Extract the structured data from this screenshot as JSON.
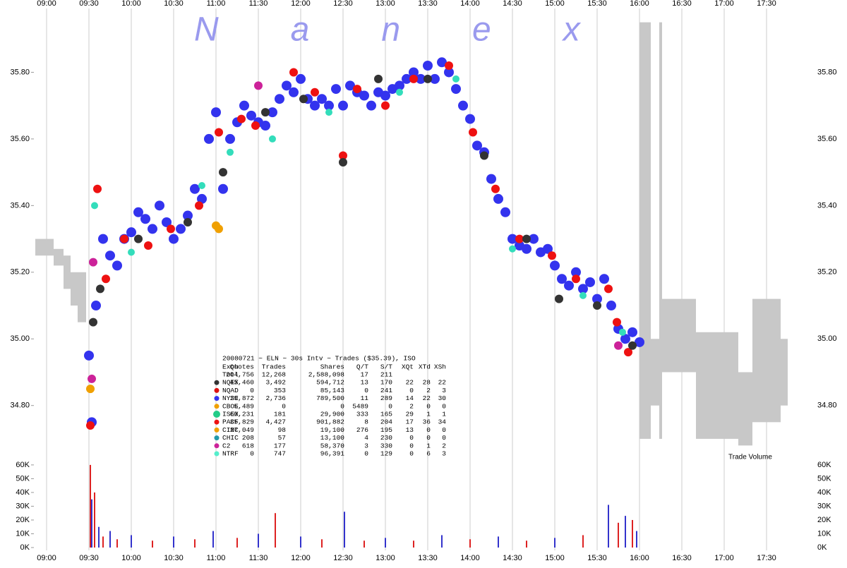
{
  "chart_data": [
    {
      "type": "scatter",
      "watermark": "Nanex",
      "xlim": [
        "08:51",
        "18:03"
      ],
      "xticks": [
        "09:00",
        "09:30",
        "10:00",
        "10:30",
        "11:00",
        "11:30",
        "12:00",
        "12:30",
        "13:00",
        "13:30",
        "14:00",
        "14:30",
        "15:00",
        "15:30",
        "16:00",
        "16:30",
        "17:00",
        "17:30"
      ],
      "ylim": [
        34.63,
        36.0
      ],
      "yticks": [
        {
          "value": 34.8,
          "label": "34.80"
        },
        {
          "value": 35.0,
          "label": "35.00"
        },
        {
          "value": 35.2,
          "label": "35.20"
        },
        {
          "value": 35.4,
          "label": "35.40"
        },
        {
          "value": 35.6,
          "label": "35.60"
        },
        {
          "value": 35.8,
          "label": "35.80"
        }
      ],
      "grid": "x",
      "quote_ranges": {
        "color": "#c8c8c8",
        "x": [
          "08:52",
          "09:05",
          "09:12",
          "09:17",
          "09:22",
          "16:00",
          "16:08",
          "16:14",
          "16:16",
          "16:40",
          "17:10",
          "17:20",
          "17:40"
        ],
        "x_end": [
          "09:05",
          "09:12",
          "09:17",
          "09:22",
          "09:28",
          "16:08",
          "16:14",
          "16:16",
          "16:40",
          "17:10",
          "17:20",
          "17:40",
          "17:45"
        ],
        "low": [
          35.25,
          35.22,
          35.15,
          35.1,
          35.05,
          34.7,
          34.8,
          34.7,
          34.9,
          34.7,
          34.68,
          34.75,
          34.8
        ],
        "high": [
          35.3,
          35.27,
          35.25,
          35.2,
          35.2,
          35.95,
          35.0,
          35.95,
          35.12,
          35.02,
          34.9,
          35.12,
          35.0
        ]
      },
      "series": [
        {
          "color": "#3333ee",
          "marker_size": 7,
          "x": [
            "09:30",
            "09:32",
            "09:35",
            "09:40",
            "09:45",
            "09:50",
            "09:55",
            "10:00",
            "10:05",
            "10:10",
            "10:15",
            "10:20",
            "10:25",
            "10:30",
            "10:35",
            "10:40",
            "10:45",
            "10:50",
            "10:55",
            "11:00",
            "11:05",
            "11:10",
            "11:15",
            "11:20",
            "11:25",
            "11:30",
            "11:35",
            "11:40",
            "11:45",
            "11:50",
            "11:55",
            "12:00",
            "12:05",
            "12:10",
            "12:15",
            "12:20",
            "12:25",
            "12:30",
            "12:35",
            "12:40",
            "12:45",
            "12:50",
            "12:55",
            "13:00",
            "13:05",
            "13:10",
            "13:15",
            "13:20",
            "13:25",
            "13:30",
            "13:35",
            "13:40",
            "13:45",
            "13:50",
            "13:55",
            "14:00",
            "14:05",
            "14:10",
            "14:15",
            "14:20",
            "14:25",
            "14:30",
            "14:35",
            "14:40",
            "14:45",
            "14:50",
            "14:55",
            "15:00",
            "15:05",
            "15:10",
            "15:15",
            "15:20",
            "15:25",
            "15:30",
            "15:35",
            "15:40",
            "15:45",
            "15:50",
            "15:55",
            "16:00"
          ],
          "values": [
            34.95,
            34.75,
            35.1,
            35.3,
            35.25,
            35.22,
            35.3,
            35.32,
            35.38,
            35.36,
            35.33,
            35.4,
            35.35,
            35.3,
            35.33,
            35.37,
            35.45,
            35.42,
            35.6,
            35.68,
            35.45,
            35.6,
            35.65,
            35.7,
            35.67,
            35.65,
            35.64,
            35.68,
            35.72,
            35.76,
            35.74,
            35.78,
            35.72,
            35.7,
            35.72,
            35.7,
            35.75,
            35.7,
            35.76,
            35.74,
            35.73,
            35.7,
            35.74,
            35.73,
            35.75,
            35.76,
            35.78,
            35.8,
            35.78,
            35.82,
            35.78,
            35.83,
            35.8,
            35.75,
            35.7,
            35.66,
            35.58,
            35.56,
            35.48,
            35.42,
            35.38,
            35.3,
            35.28,
            35.27,
            35.3,
            35.26,
            35.27,
            35.22,
            35.18,
            35.16,
            35.2,
            35.15,
            35.17,
            35.12,
            35.18,
            35.1,
            35.03,
            35.0,
            35.02,
            34.99
          ]
        },
        {
          "color": "#ee1111",
          "marker_size": 6,
          "x": [
            "09:31",
            "09:36",
            "09:42",
            "09:55",
            "10:12",
            "10:28",
            "10:48",
            "11:02",
            "11:18",
            "11:28",
            "11:55",
            "12:10",
            "12:30",
            "12:40",
            "13:00",
            "13:20",
            "13:45",
            "14:02",
            "14:18",
            "14:35",
            "14:58",
            "15:15",
            "15:38",
            "15:44",
            "15:52"
          ],
          "values": [
            34.74,
            35.45,
            35.18,
            35.3,
            35.28,
            35.33,
            35.4,
            35.62,
            35.66,
            35.64,
            35.8,
            35.74,
            35.55,
            35.75,
            35.7,
            35.78,
            35.82,
            35.62,
            35.45,
            35.3,
            35.25,
            35.18,
            35.15,
            35.05,
            34.96
          ]
        },
        {
          "color": "#333333",
          "marker_size": 6,
          "x": [
            "09:33",
            "09:38",
            "10:05",
            "10:40",
            "11:05",
            "11:35",
            "12:02",
            "12:30",
            "12:55",
            "13:30",
            "14:10",
            "14:40",
            "15:03",
            "15:30",
            "15:55"
          ],
          "values": [
            35.05,
            35.15,
            35.3,
            35.35,
            35.5,
            35.68,
            35.72,
            35.53,
            35.78,
            35.78,
            35.55,
            35.3,
            35.12,
            35.1,
            34.98
          ]
        },
        {
          "color": "#33ddbb",
          "marker_size": 5,
          "x": [
            "09:34",
            "10:00",
            "10:50",
            "11:10",
            "11:40",
            "12:20",
            "13:10",
            "13:50",
            "14:30",
            "15:20",
            "15:48"
          ],
          "values": [
            35.4,
            35.26,
            35.46,
            35.56,
            35.6,
            35.68,
            35.74,
            35.78,
            35.27,
            35.13,
            35.02
          ]
        },
        {
          "color": "#f0a000",
          "marker_size": 6,
          "x": [
            "09:31",
            "11:00",
            "11:02"
          ],
          "values": [
            34.85,
            35.34,
            35.33
          ]
        },
        {
          "color": "#cc2299",
          "marker_size": 6,
          "x": [
            "09:32",
            "09:33",
            "11:30",
            "15:45"
          ],
          "values": [
            34.88,
            35.23,
            35.76,
            34.98
          ]
        }
      ],
      "stats_table": {
        "title": "20080721 ~ ELN ~ 30s Intv ~ Trades ($35.39), ISO",
        "columns": [
          "Exch",
          "Quotes",
          "Trades",
          "Shares",
          "Q/T",
          "S/T",
          "XQt",
          "XTd",
          "XSh"
        ],
        "rows": [
          [
            "Totl",
            "204,756",
            "12,268",
            "2,588,098",
            "17",
            "211"
          ],
          [
            "NQEX",
            "45,460",
            "3,492",
            "594,712",
            "13",
            "170",
            "22",
            "28",
            "22"
          ],
          [
            "NQAD",
            "0",
            "353",
            "85,143",
            "0",
            "241",
            "0",
            "2",
            "3"
          ],
          [
            "NYSE",
            "29,872",
            "2,736",
            "789,500",
            "11",
            "289",
            "14",
            "22",
            "30"
          ],
          [
            "CBOE",
            "5,489",
            "0",
            "0",
            "5489",
            "0",
            "2",
            "0",
            "0"
          ],
          [
            "ISEX",
            "60,231",
            "181",
            "29,900",
            "333",
            "165",
            "29",
            "1",
            "1"
          ],
          [
            "PACF",
            "35,829",
            "4,427",
            "901,882",
            "8",
            "204",
            "17",
            "36",
            "34"
          ],
          [
            "CINC",
            "27,049",
            "98",
            "19,100",
            "276",
            "195",
            "13",
            "0",
            "0"
          ],
          [
            "CHIC",
            "208",
            "57",
            "13,100",
            "4",
            "230",
            "0",
            "0",
            "0"
          ],
          [
            "C2",
            "618",
            "177",
            "58,370",
            "3",
            "330",
            "0",
            "1",
            "2"
          ],
          [
            "NTRF",
            "0",
            "747",
            "96,391",
            "0",
            "129",
            "0",
            "6",
            "3"
          ]
        ],
        "marker_colors": [
          null,
          "#333333",
          "#dd1111",
          "#3333ee",
          "#f0a000",
          "#22cc88",
          "#ee1111",
          "#f0a000",
          "#2299aa",
          "#cc2299",
          "#55eecc"
        ]
      }
    },
    {
      "type": "bar",
      "annotation": "Trade Volume",
      "ylim": [
        0,
        62000
      ],
      "yticks": [
        {
          "value": 0,
          "label": "0K"
        },
        {
          "value": 10000,
          "label": "10K"
        },
        {
          "value": 20000,
          "label": "20K"
        },
        {
          "value": 30000,
          "label": "30K"
        },
        {
          "value": 40000,
          "label": "40K"
        },
        {
          "value": 50000,
          "label": "50K"
        },
        {
          "value": 60000,
          "label": "60K"
        }
      ],
      "color": "#dd2222",
      "x": [
        "09:31",
        "09:32",
        "09:34",
        "09:37",
        "09:40",
        "09:45",
        "09:50",
        "10:00",
        "10:15",
        "10:30",
        "10:45",
        "10:58",
        "11:15",
        "11:30",
        "11:42",
        "12:00",
        "12:15",
        "12:31",
        "12:45",
        "13:00",
        "13:20",
        "13:40",
        "14:00",
        "14:20",
        "14:40",
        "15:00",
        "15:20",
        "15:38",
        "15:45",
        "15:50",
        "15:55",
        "15:58"
      ],
      "values": [
        60000,
        35000,
        40000,
        15000,
        8000,
        12000,
        6000,
        9000,
        5000,
        8000,
        6000,
        12000,
        7000,
        10000,
        25000,
        8000,
        6000,
        26000,
        5000,
        7000,
        5000,
        9000,
        6000,
        8000,
        5000,
        7000,
        9000,
        31000,
        18000,
        23000,
        20000,
        12000
      ]
    }
  ]
}
